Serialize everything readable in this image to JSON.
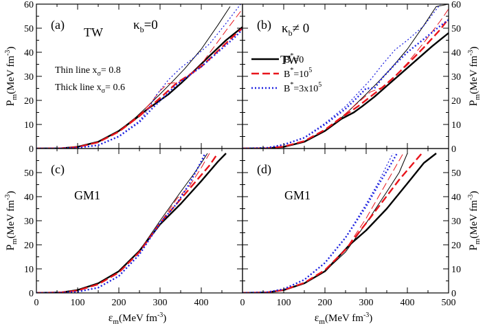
{
  "chart_data": {
    "type": "line",
    "xlabel": "ε",
    "xlabel_sub": "m",
    "xlabel_unit": "(MeV fm",
    "xlabel_exp": "-3",
    "xlabel_close": ")",
    "ylabel": "P",
    "ylabel_sub": "m",
    "ylabel_unit": "(MeV fm",
    "ylabel_exp": "-3",
    "ylabel_close": ")",
    "xlim": [
      0,
      500
    ],
    "ylim": [
      0,
      60
    ],
    "xticks": [
      "0",
      "100",
      "200",
      "300",
      "400",
      "500"
    ],
    "yticks_top": [
      "0",
      "10",
      "20",
      "30",
      "40",
      "50",
      "60"
    ],
    "yticks_bottom": [
      "0",
      "10",
      "20",
      "30",
      "40",
      "50"
    ],
    "legend": {
      "entries": [
        {
          "base": "B",
          "sup": "*",
          "rest": "=0",
          "color": "#000000",
          "dash": "solid"
        },
        {
          "base": "B",
          "sup": "*",
          "rest": "=10",
          "sup2": "5",
          "color": "#e8141b",
          "dash": "dashed"
        },
        {
          "base": "B",
          "sup": "*",
          "rest": "=3x10",
          "sup2": "5",
          "color": "#1f23e0",
          "dash": "dotted"
        }
      ]
    },
    "annotations": {
      "thin_prefix": "Thin line x",
      "thin_sub": "σ",
      "thin_val": "= 0.8",
      "thick_prefix": "Thick line x",
      "thick_sub": "σ",
      "thick_val": "= 0.6"
    },
    "panels": [
      {
        "id": "a",
        "tag": "(a)",
        "model": "TW",
        "kappa": "κ",
        "kappa_sub": "b",
        "kappa_rel": "=0",
        "series": [
          {
            "name": "B*=0 x=0.8",
            "color": "#000000",
            "dash": "solid",
            "width": 1,
            "x": [
              0,
              60,
              100,
              150,
              200,
              240,
              270,
              300,
              330,
              360,
              400,
              440,
              470
            ],
            "y": [
              0,
              0.1,
              0.7,
              2.8,
              7.4,
              12.8,
              17.6,
              22.6,
              27.8,
              33.2,
              41.3,
              51.2,
              59
            ]
          },
          {
            "name": "B*=0 x=0.6",
            "color": "#000000",
            "dash": "solid",
            "width": 2.4,
            "x": [
              0,
              60,
              100,
              150,
              200,
              240,
              270,
              290,
              320,
              350,
              380,
              420,
              460,
              500
            ],
            "y": [
              0,
              0.1,
              0.7,
              2.8,
              7.3,
              12.3,
              16.5,
              18.8,
              22.5,
              27,
              31.8,
              38.5,
              45,
              50.5
            ]
          },
          {
            "name": "B*=10^5 x=0.8",
            "color": "#e8141b",
            "dash": "dashed",
            "width": 1,
            "x": [
              0,
              60,
              100,
              150,
              200,
              250,
              280,
              300,
              320,
              345,
              370,
              400,
              430,
              460,
              500
            ],
            "y": [
              0,
              0.1,
              0.6,
              2.7,
              7.2,
              14,
              19.5,
              24,
              27,
              27.5,
              30,
              35,
              42,
              49,
              58
            ]
          },
          {
            "name": "B*=10^5 x=0.6",
            "color": "#e8141b",
            "dash": "dashed",
            "width": 2.4,
            "x": [
              0,
              60,
              100,
              150,
              200,
              250,
              280,
              310,
              340,
              370,
              400,
              440,
              480,
              500
            ],
            "y": [
              0,
              0.1,
              0.6,
              2.6,
              7,
              13.5,
              18,
              22.5,
              27.2,
              30.5,
              34,
              40.5,
              47,
              50
            ]
          },
          {
            "name": "B*=3x10^5 x=0.8",
            "color": "#1f23e0",
            "dash": "dotted",
            "width": 1.3,
            "x": [
              0,
              60,
              100,
              150,
              200,
              250,
              270,
              290,
              320,
              350,
              380,
              420,
              460,
              500
            ],
            "y": [
              0,
              0.05,
              0.3,
              1.4,
              5.2,
              11.5,
              16,
              22,
              28.5,
              33.5,
              37.5,
              43.5,
              52,
              61
            ]
          },
          {
            "name": "B*=3x10^5 x=0.6",
            "color": "#1f23e0",
            "dash": "dotted",
            "width": 2.4,
            "x": [
              0,
              60,
              100,
              150,
              200,
              250,
              280,
              310,
              340,
              370,
              400,
              440,
              480,
              500
            ],
            "y": [
              0,
              0.05,
              0.3,
              1.4,
              5,
              11,
              16.5,
              21.5,
              26.5,
              30.3,
              34,
              40,
              46,
              49.5
            ]
          }
        ]
      },
      {
        "id": "b",
        "tag": "(b)",
        "model": "TW",
        "kappa": "κ",
        "kappa_sub": "b",
        "kappa_rel": "≠ 0",
        "series": [
          {
            "name": "B*=0 x=0.8",
            "color": "#000000",
            "dash": "solid",
            "width": 1,
            "x": [
              0,
              60,
              100,
              150,
              200,
              240,
              270,
              300,
              330,
              360,
              400,
              440,
              470,
              500
            ],
            "y": [
              0,
              0.1,
              0.7,
              2.8,
              7.4,
              12.8,
              17.6,
              22.6,
              27.8,
              33.2,
              41.3,
              51.2,
              59,
              60
            ]
          },
          {
            "name": "B*=0 x=0.6",
            "color": "#000000",
            "dash": "solid",
            "width": 2.4,
            "x": [
              0,
              60,
              100,
              150,
              200,
              240,
              270,
              290,
              320,
              350,
              380,
              420,
              460,
              500
            ],
            "y": [
              0,
              0.1,
              0.7,
              2.8,
              7.3,
              12.3,
              15,
              17.5,
              21.5,
              26,
              30.5,
              36.5,
              42.5,
              48
            ]
          },
          {
            "name": "B*=10^5 x=0.8",
            "color": "#e8141b",
            "dash": "dashed",
            "width": 1,
            "x": [
              0,
              60,
              100,
              150,
              200,
              250,
              280,
              310,
              340,
              370,
              400,
              440,
              480,
              500
            ],
            "y": [
              0,
              0.1,
              0.8,
              3.2,
              8,
              14.5,
              19,
              23.5,
              25.5,
              30,
              35.5,
              44,
              53,
              58
            ]
          },
          {
            "name": "B*=10^5 x=0.6",
            "color": "#e8141b",
            "dash": "dashed",
            "width": 2.4,
            "x": [
              0,
              60,
              100,
              150,
              200,
              250,
              280,
              310,
              340,
              370,
              400,
              440,
              480,
              500
            ],
            "y": [
              0,
              0.1,
              0.8,
              3.1,
              7.8,
              14,
              17.5,
              21.5,
              25.5,
              30,
              35,
              42,
              49.5,
              54
            ]
          },
          {
            "name": "B*=3x10^5 x=0.8",
            "color": "#1f23e0",
            "dash": "dotted",
            "width": 1.3,
            "x": [
              0,
              60,
              100,
              150,
              200,
              250,
              280,
              310,
              340,
              370,
              400,
              440,
              480
            ],
            "y": [
              0,
              0.3,
              1.6,
              4.6,
              10.5,
              17.5,
              23,
              28.5,
              35,
              41,
              45,
              51,
              60
            ]
          },
          {
            "name": "B*=3x10^5 x=0.6",
            "color": "#1f23e0",
            "dash": "dotted",
            "width": 2.4,
            "x": [
              0,
              60,
              100,
              150,
              200,
              250,
              280,
              300,
              320,
              340,
              370,
              400,
              440,
              480,
              500
            ],
            "y": [
              0,
              0.3,
              1.6,
              4.5,
              10,
              16.5,
              21.5,
              25,
              25,
              29.5,
              35,
              40,
              45.5,
              51,
              53.5
            ]
          }
        ]
      },
      {
        "id": "c",
        "tag": "(c)",
        "model": "GM1",
        "series": [
          {
            "name": "B*=0 x=0.8",
            "color": "#000000",
            "dash": "solid",
            "width": 1,
            "x": [
              0,
              60,
              100,
              150,
              200,
              250,
              300,
              350,
              380,
              400,
              415
            ],
            "y": [
              0,
              0.2,
              1.2,
              4,
              9,
              17.5,
              30,
              42,
              49,
              54,
              58
            ]
          },
          {
            "name": "B*=0 x=0.6",
            "color": "#000000",
            "dash": "solid",
            "width": 2.4,
            "x": [
              0,
              60,
              100,
              150,
              200,
              250,
              300,
              350,
              400,
              440,
              460
            ],
            "y": [
              0,
              0.2,
              1.2,
              4,
              9,
              17.5,
              28.5,
              37,
              46.5,
              54.5,
              58
            ]
          },
          {
            "name": "B*=10^5 x=0.8",
            "color": "#e8141b",
            "dash": "dashed",
            "width": 1,
            "x": [
              0,
              60,
              100,
              150,
              200,
              250,
              300,
              340,
              370,
              400,
              420
            ],
            "y": [
              0,
              0.2,
              1,
              3.6,
              8.5,
              17,
              29,
              39,
              44,
              52,
              58
            ]
          },
          {
            "name": "B*=10^5 x=0.6",
            "color": "#e8141b",
            "dash": "dashed",
            "width": 2.4,
            "x": [
              0,
              60,
              100,
              150,
              200,
              250,
              300,
              340,
              380,
              420,
              440
            ],
            "y": [
              0,
              0.2,
              1,
              3.6,
              8.5,
              17,
              29,
              37,
              45,
              53,
              58
            ]
          },
          {
            "name": "B*=3x10^5 x=0.8",
            "color": "#1f23e0",
            "dash": "dotted",
            "width": 1.3,
            "x": [
              0,
              60,
              100,
              150,
              200,
              250,
              300,
              340,
              370,
              395,
              408
            ],
            "y": [
              0,
              0.1,
              0.5,
              2.2,
              7,
              16,
              29,
              37,
              45,
              53,
              58
            ]
          },
          {
            "name": "B*=3x10^5 x=0.6",
            "color": "#1f23e0",
            "dash": "dotted",
            "width": 2.4,
            "x": [
              0,
              60,
              100,
              150,
              200,
              250,
              300,
              340,
              370,
              395,
              410
            ],
            "y": [
              0,
              0.1,
              0.5,
              2.2,
              7,
              16,
              29,
              37,
              45,
              53,
              58
            ]
          }
        ]
      },
      {
        "id": "d",
        "tag": "(d)",
        "model": "GM1",
        "series": [
          {
            "name": "B*=0 x=0.8",
            "color": "#000000",
            "dash": "solid",
            "width": 1,
            "x": [
              0,
              60,
              100,
              150,
              200,
              250,
              300,
              350,
              380,
              400
            ],
            "y": [
              0,
              0.2,
              1.2,
              4,
              9,
              17,
              29,
              42,
              50,
              58
            ]
          },
          {
            "name": "B*=0 x=0.6",
            "color": "#000000",
            "dash": "solid",
            "width": 2.4,
            "x": [
              0,
              60,
              100,
              150,
              200,
              260,
              300,
              350,
              400,
              440,
              470
            ],
            "y": [
              0,
              0.2,
              1.2,
              4,
              9,
              20,
              26,
              35,
              45.5,
              54,
              58
            ]
          },
          {
            "name": "B*=10^5 x=0.8",
            "color": "#e8141b",
            "dash": "dashed",
            "width": 1,
            "x": [
              0,
              60,
              100,
              150,
              200,
              250,
              300,
              340,
              370,
              390
            ],
            "y": [
              0,
              0.2,
              1.2,
              4.2,
              9.5,
              18,
              31,
              43,
              52,
              58
            ]
          },
          {
            "name": "B*=10^5 x=0.6",
            "color": "#e8141b",
            "dash": "dashed",
            "width": 2.4,
            "x": [
              0,
              60,
              100,
              150,
              200,
              250,
              300,
              340,
              380,
              410,
              435
            ],
            "y": [
              0,
              0.2,
              1.2,
              4.2,
              9.5,
              18,
              29,
              38,
              47,
              53,
              58
            ]
          },
          {
            "name": "B*=3x10^5 x=0.8",
            "color": "#1f23e0",
            "dash": "dotted",
            "width": 1.3,
            "x": [
              0,
              60,
              100,
              150,
              200,
              250,
              300,
              330,
              350,
              365
            ],
            "y": [
              0,
              0.3,
              1.6,
              5.5,
              12.5,
              23,
              37,
              46,
              53,
              58
            ]
          },
          {
            "name": "B*=3x10^5 x=0.6",
            "color": "#1f23e0",
            "dash": "dotted",
            "width": 2.4,
            "x": [
              0,
              60,
              100,
              150,
              200,
              250,
              300,
              330,
              355,
              375
            ],
            "y": [
              0,
              0.3,
              1.6,
              5.5,
              12.5,
              23,
              36,
              45,
              52,
              58
            ]
          }
        ]
      }
    ]
  }
}
